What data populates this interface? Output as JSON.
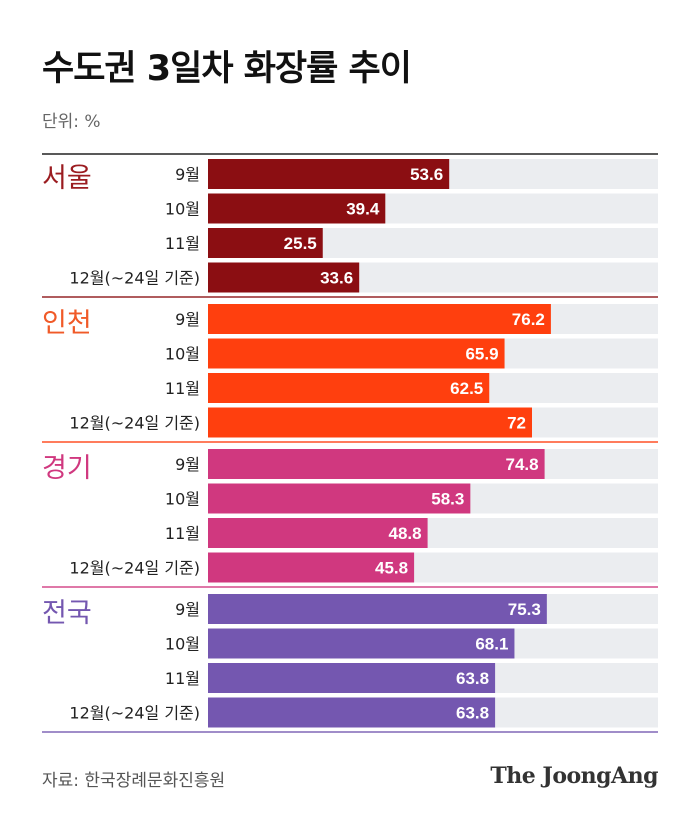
{
  "title": "수도권 3일차 화장률 추이",
  "unit": "단위: %",
  "source": "자료: 한국장례문화진흥원",
  "brand": "The JoongAng",
  "chart_data": {
    "type": "bar",
    "orientation": "horizontal",
    "xlim": [
      0,
      100
    ],
    "grid": false,
    "groups": [
      {
        "name": "서울",
        "color": "#8b0e12",
        "label_color": "#9b1c20",
        "categories": [
          "9월",
          "10월",
          "11월",
          "12월(~24일 기준)"
        ],
        "values": [
          53.6,
          39.4,
          25.5,
          33.6
        ]
      },
      {
        "name": "인천",
        "color": "#ff3f0e",
        "label_color": "#f05a28",
        "categories": [
          "9월",
          "10월",
          "11월",
          "12월(~24일 기준)"
        ],
        "values": [
          76.2,
          65.9,
          62.5,
          72
        ]
      },
      {
        "name": "경기",
        "color": "#d0387f",
        "label_color": "#d0387f",
        "categories": [
          "9월",
          "10월",
          "11월",
          "12월(~24일 기준)"
        ],
        "values": [
          74.8,
          58.3,
          48.8,
          45.8
        ]
      },
      {
        "name": "전국",
        "color": "#7457b0",
        "label_color": "#7457b0",
        "categories": [
          "9월",
          "10월",
          "11월",
          "12월(~24일 기준)"
        ],
        "values": [
          75.3,
          68.1,
          63.8,
          63.8
        ]
      }
    ]
  }
}
